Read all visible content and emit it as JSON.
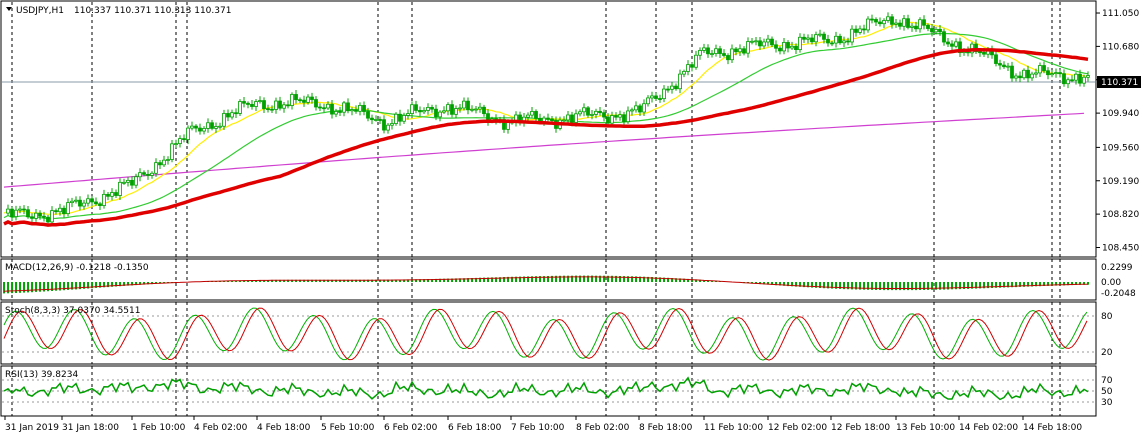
{
  "symbol": "USDJPY,H1",
  "ohlc": "110.337 110.371 110.313 110.371",
  "current_price": "110.371",
  "price_axis": [
    "111.050",
    "110.680",
    "110.310",
    "109.940",
    "109.560",
    "109.190",
    "108.820",
    "108.450"
  ],
  "time_axis": [
    "31 Jan 2019",
    "31 Jan 18:00",
    "1 Feb 10:00",
    "4 Feb 02:00",
    "4 Feb 18:00",
    "5 Feb 10:00",
    "6 Feb 02:00",
    "6 Feb 18:00",
    "7 Feb 10:00",
    "8 Feb 02:00",
    "8 Feb 18:00",
    "11 Feb 10:00",
    "12 Feb 02:00",
    "12 Feb 18:00",
    "13 Feb 10:00",
    "14 Feb 02:00",
    "14 Feb 18:00"
  ],
  "macd": {
    "label": "MACD(12,26,9) -0.1218 -0.1350",
    "axis": [
      "0.2299",
      "0.00",
      "-0.2048"
    ]
  },
  "stoch": {
    "label": "Stoch(8,3,3) 37.0370 34.5511",
    "axis": [
      "80",
      "20"
    ]
  },
  "rsi": {
    "label": "RSI(13) 39.8234",
    "axis": [
      "70",
      "50",
      "30"
    ]
  },
  "colors": {
    "candle": "#00a000",
    "ma_red": "#e00000",
    "ma_yellow": "#ffee00",
    "ma_green": "#33cc33",
    "ma_magenta": "#d040d0",
    "macd_hist": "#00aa00",
    "macd_signal": "#c00000",
    "stoch_main": "#00b000",
    "stoch_signal": "#d00000",
    "rsi": "#00a000"
  },
  "chart_data": {
    "type": "line",
    "x": [
      "31 Jan 2019",
      "31 Jan 18:00",
      "1 Feb 10:00",
      "4 Feb 02:00",
      "4 Feb 18:00",
      "5 Feb 10:00",
      "6 Feb 02:00",
      "6 Feb 18:00",
      "7 Feb 10:00",
      "8 Feb 02:00",
      "8 Feb 18:00",
      "11 Feb 10:00",
      "12 Feb 02:00",
      "12 Feb 18:00",
      "13 Feb 10:00",
      "14 Feb 02:00",
      "14 Feb 18:00"
    ],
    "series": [
      {
        "values": [
          108.8,
          108.85,
          109.15,
          109.75,
          110.05,
          110.05,
          109.85,
          110.02,
          109.85,
          109.9,
          109.95,
          110.6,
          110.7,
          110.75,
          111.0,
          110.7,
          110.37
        ]
      }
    ],
    "ylim": [
      108.4,
      111.15
    ]
  }
}
